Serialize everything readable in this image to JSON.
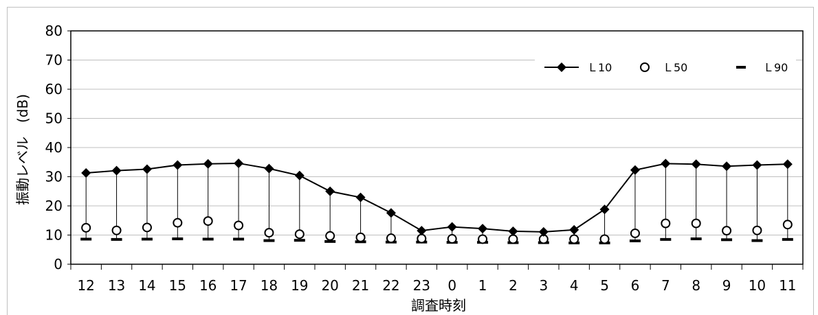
{
  "chart_data": {
    "type": "line",
    "xlabel": "調査時刻",
    "ylabel": "振動レベル　(dB)",
    "ylim": [
      0,
      80
    ],
    "yticks": [
      0,
      10,
      20,
      30,
      40,
      50,
      60,
      70,
      80
    ],
    "grid": true,
    "legend_position": "top-right",
    "categories": [
      "12",
      "13",
      "14",
      "15",
      "16",
      "17",
      "18",
      "19",
      "20",
      "21",
      "22",
      "23",
      "0",
      "1",
      "2",
      "3",
      "4",
      "5",
      "6",
      "7",
      "8",
      "9",
      "10",
      "11"
    ],
    "series": [
      {
        "name": "L10",
        "label": "Ｌ10",
        "marker": "diamond",
        "line": true,
        "values": [
          31.3,
          32.1,
          32.6,
          34.0,
          34.4,
          34.6,
          32.8,
          30.4,
          25.0,
          22.9,
          17.6,
          11.5,
          12.8,
          12.2,
          11.3,
          11.1,
          11.8,
          18.8,
          32.3,
          34.5,
          34.3,
          33.6,
          34.0,
          34.3
        ]
      },
      {
        "name": "L50",
        "label": "Ｌ50",
        "marker": "circle",
        "line": false,
        "values": [
          12.5,
          11.6,
          12.6,
          14.2,
          14.8,
          13.3,
          10.8,
          10.3,
          9.7,
          9.2,
          8.9,
          8.8,
          8.7,
          8.6,
          8.6,
          8.6,
          8.6,
          8.6,
          10.6,
          14.0,
          14.0,
          11.5,
          11.6,
          13.6
        ]
      },
      {
        "name": "L90",
        "label": "Ｌ90",
        "marker": "dash",
        "line": false,
        "values": [
          8.6,
          8.5,
          8.6,
          8.7,
          8.6,
          8.6,
          8.1,
          8.2,
          7.8,
          7.7,
          7.6,
          7.6,
          7.5,
          7.5,
          7.4,
          7.4,
          7.3,
          7.3,
          8.0,
          8.5,
          8.7,
          8.4,
          8.1,
          8.5
        ]
      }
    ],
    "colors": {
      "series": "#000000",
      "grid": "#bfbfbf",
      "axis": "#000000"
    }
  }
}
